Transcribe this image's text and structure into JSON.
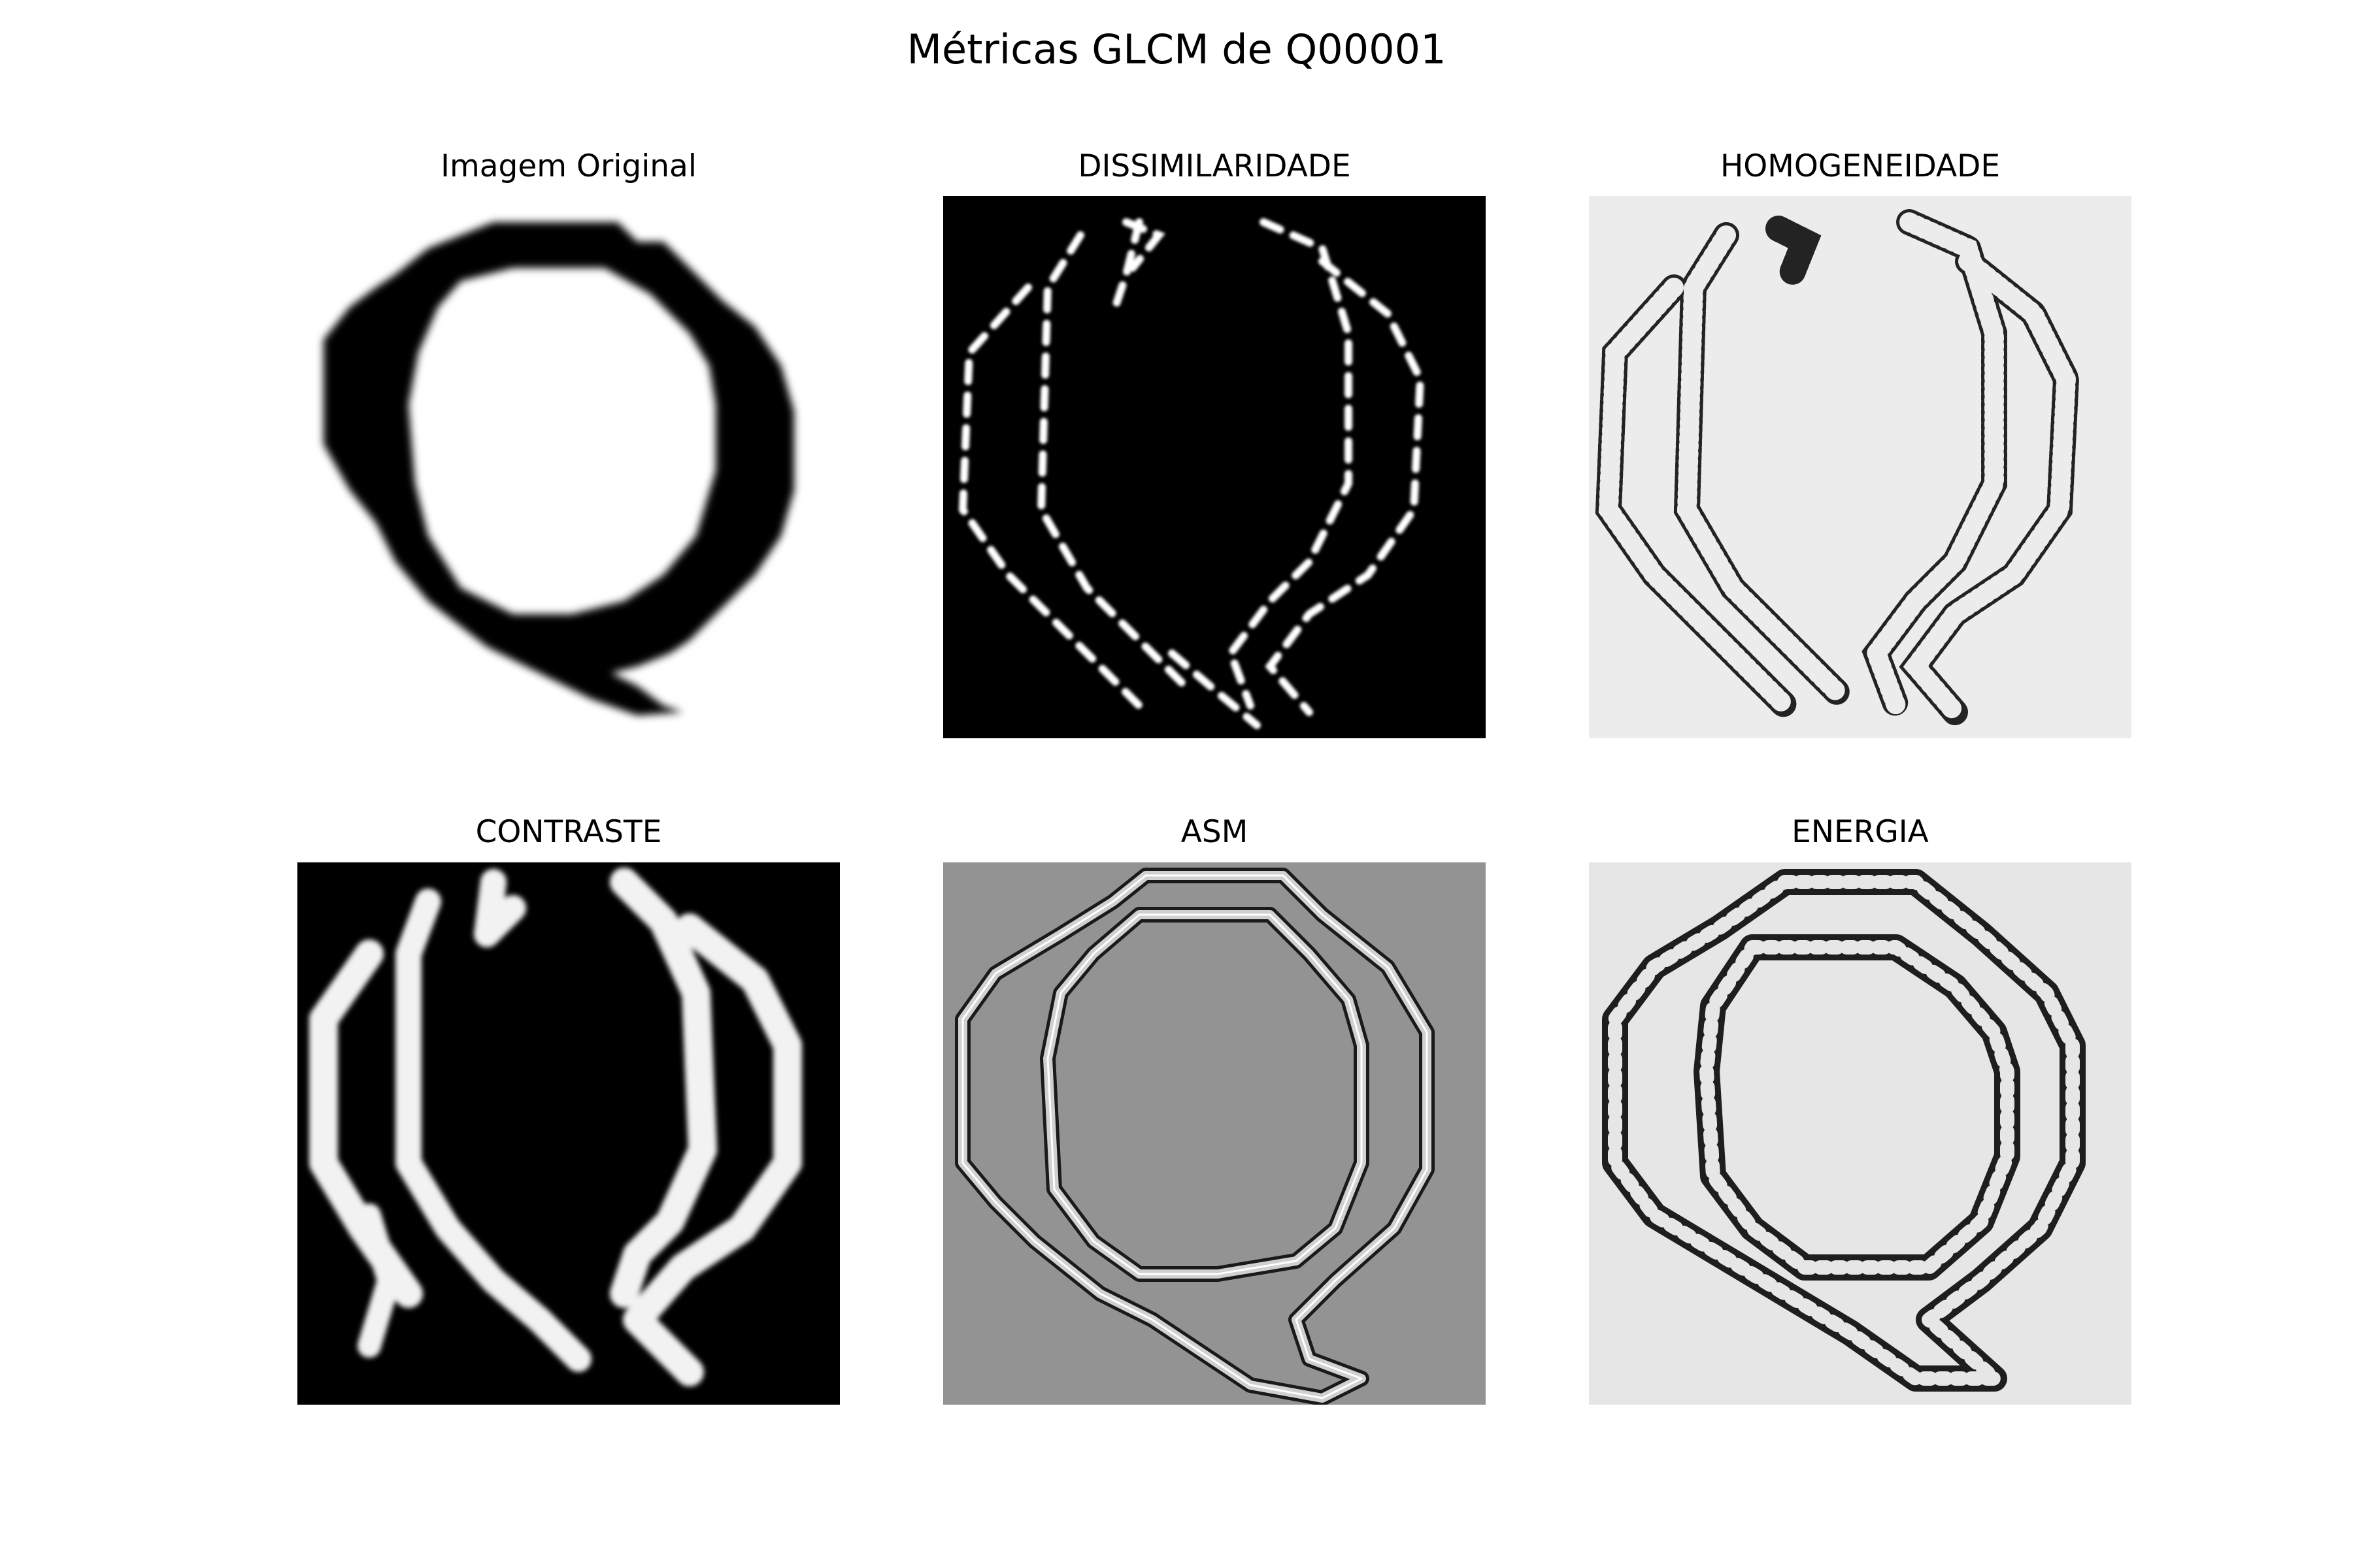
{
  "figure": {
    "title": "Métricas GLCM de Q00001",
    "panels": [
      {
        "title": "Imagem Original",
        "background": "#ffffff",
        "foreground": "#000000",
        "style": "filled-ring"
      },
      {
        "title": "DISSIMILARIDADE",
        "background": "#000000",
        "foreground": "#ffffff",
        "style": "dotted-edges"
      },
      {
        "title": "HOMOGENEIDADE",
        "background": "#ececec",
        "foreground": "#000000",
        "style": "noisy-edges"
      },
      {
        "title": "CONTRASTE",
        "background": "#000000",
        "foreground": "#f2f2f2",
        "style": "thick-edges"
      },
      {
        "title": "ASM",
        "background": "#939393",
        "foreground": "#1a1a1a",
        "style": "double-contour"
      },
      {
        "title": "ENERGIA",
        "background": "#e6e6e6",
        "foreground": "#1e1e1e",
        "style": "ring-bands"
      }
    ]
  }
}
